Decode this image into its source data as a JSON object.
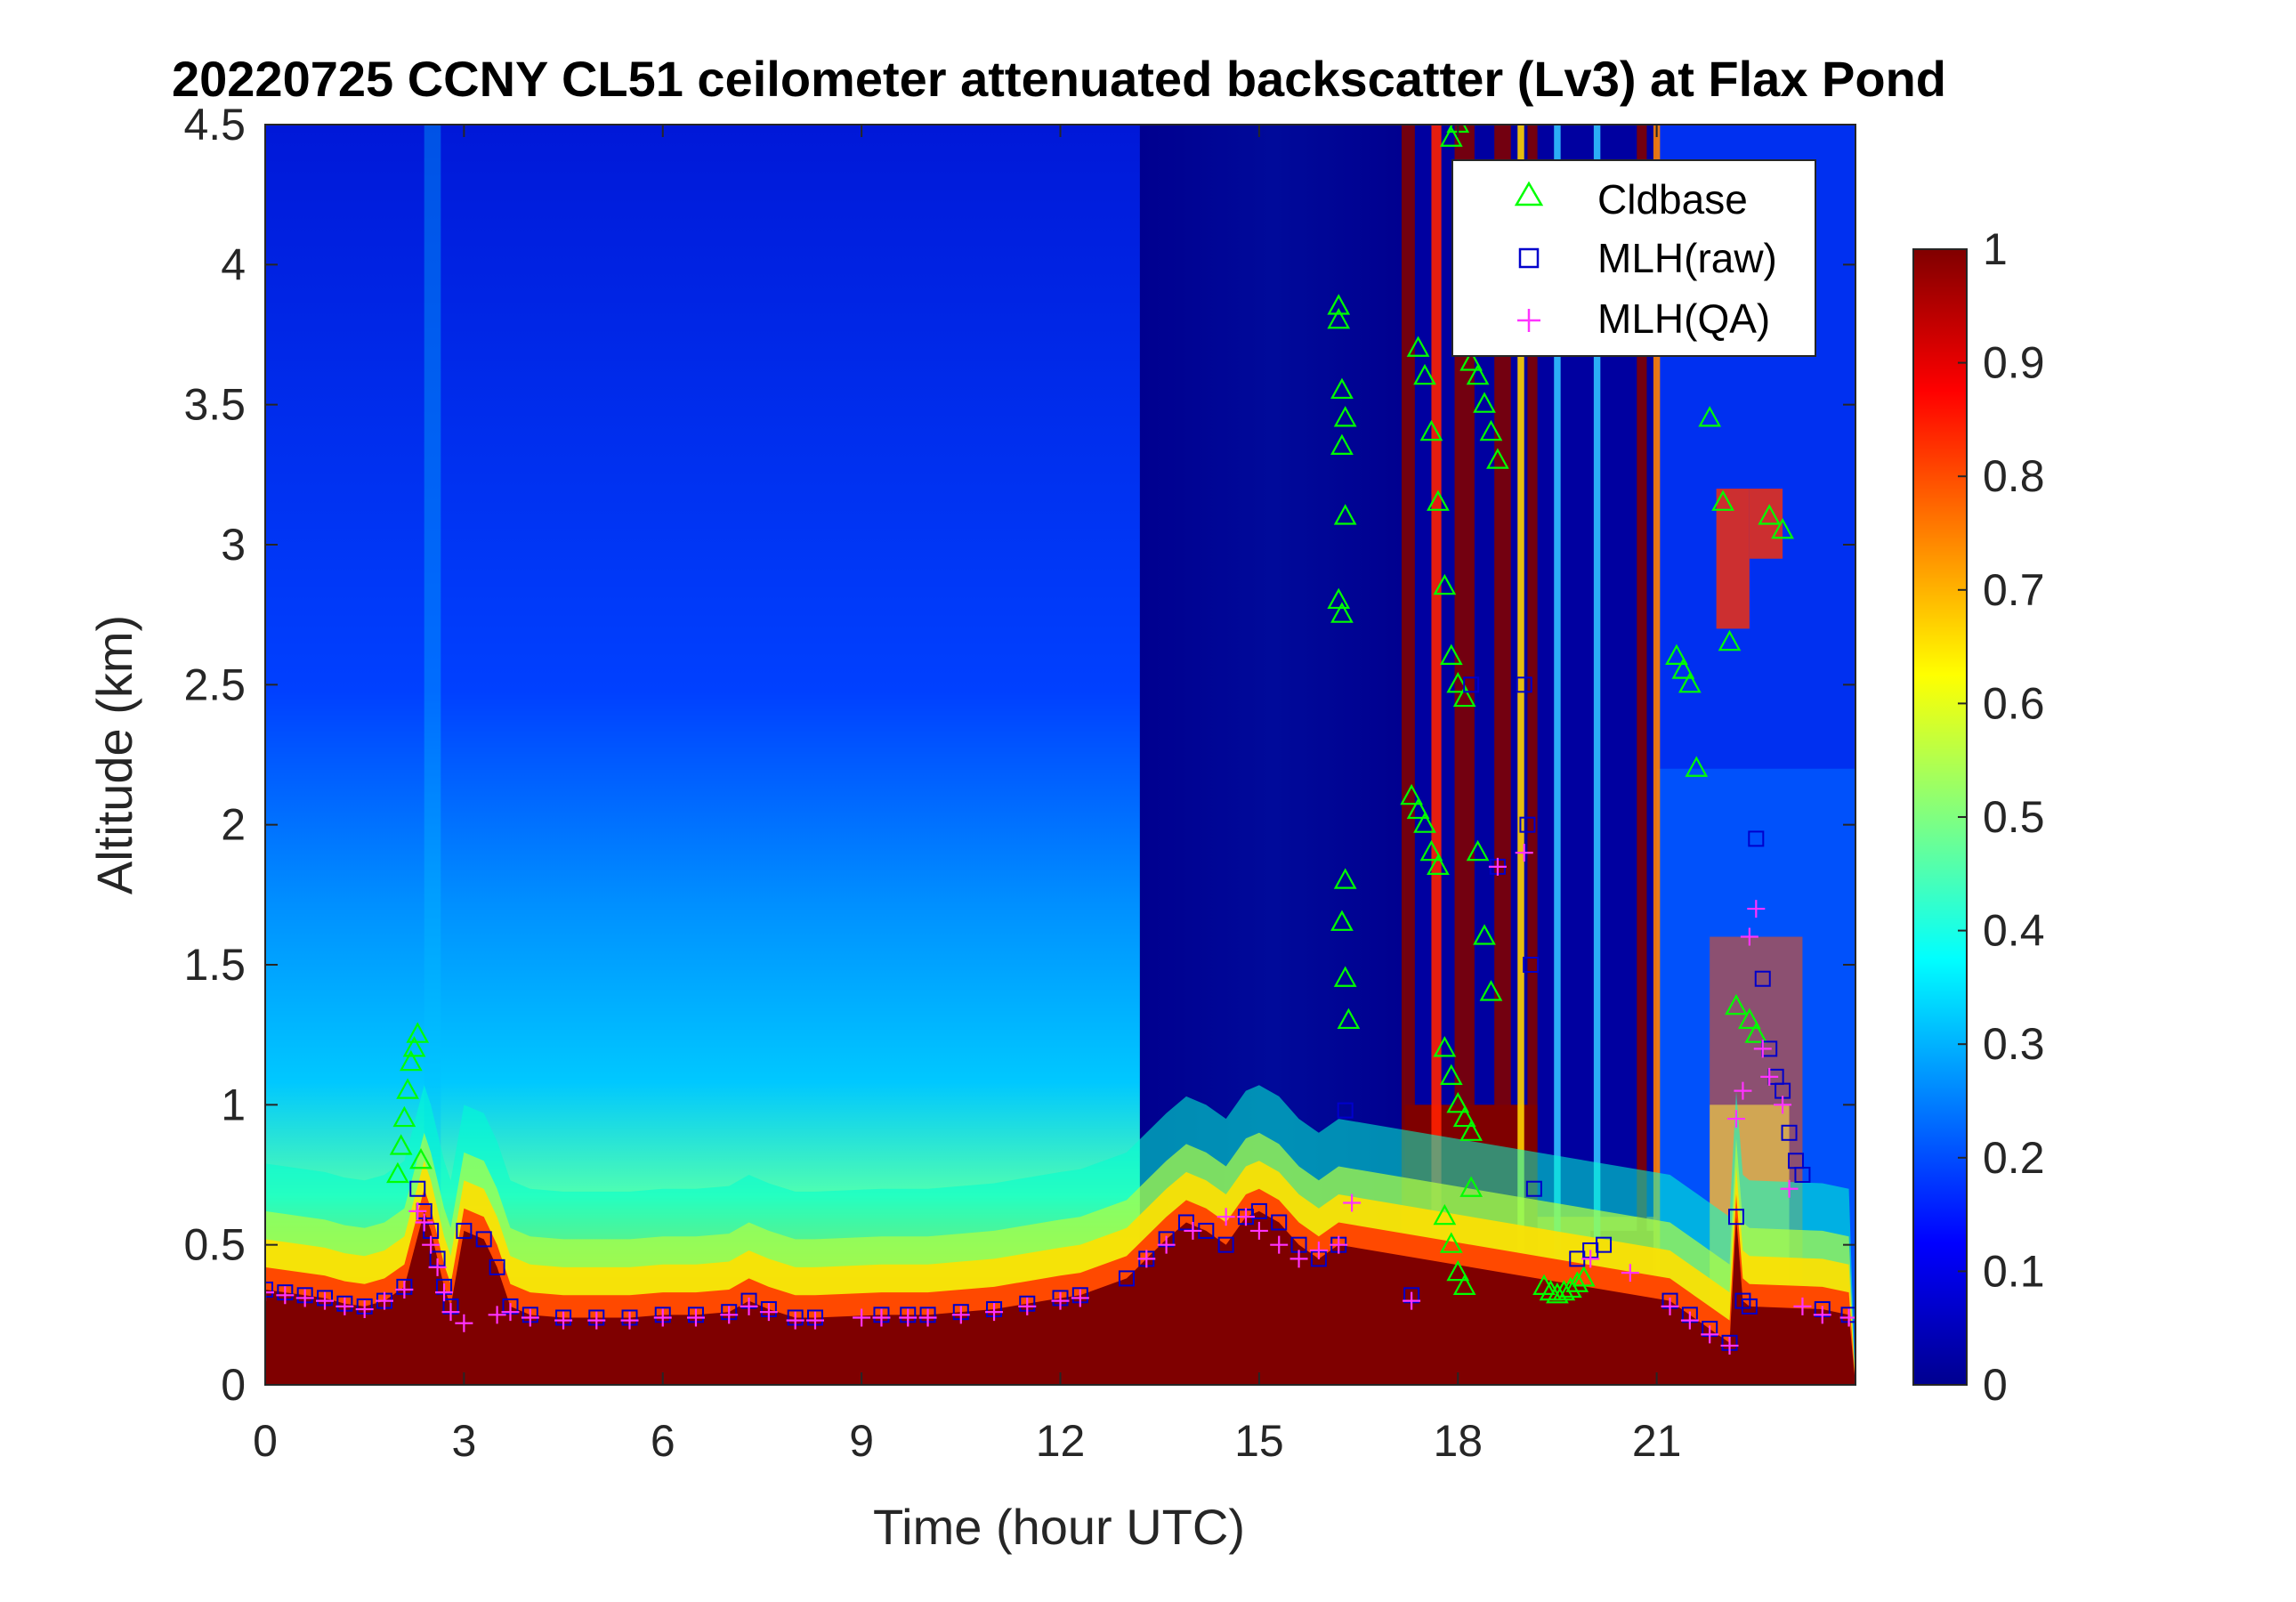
{
  "chart_data": {
    "type": "heatmap",
    "title": "20220725 CCNY CL51 ceilometer attenuated backscatter (Lv3) at Flax Pond",
    "xlabel": "Time (hour UTC)",
    "ylabel": "Altitude (km)",
    "xlim": [
      0,
      24
    ],
    "ylim": [
      0,
      4.5
    ],
    "x_ticks": [
      "0",
      "3",
      "6",
      "9",
      "12",
      "15",
      "18",
      "21"
    ],
    "x_tick_values": [
      0,
      3,
      6,
      9,
      12,
      15,
      18,
      21
    ],
    "y_ticks": [
      "0",
      "0.5",
      "1",
      "1.5",
      "2",
      "2.5",
      "3",
      "3.5",
      "4",
      "4.5"
    ],
    "y_tick_values": [
      0,
      0.5,
      1,
      1.5,
      2,
      2.5,
      3,
      3.5,
      4,
      4.5
    ],
    "colorbar": {
      "colormap": "jet",
      "range": [
        0,
        1
      ],
      "ticks": [
        "0",
        "0.1",
        "0.2",
        "0.3",
        "0.4",
        "0.5",
        "0.6",
        "0.7",
        "0.8",
        "0.9",
        "1"
      ],
      "tick_values": [
        0,
        0.1,
        0.2,
        0.3,
        0.4,
        0.5,
        0.6,
        0.7,
        0.8,
        0.9,
        1
      ]
    },
    "legend": {
      "placement": "top-right",
      "entries": [
        {
          "label": "Cldbase",
          "marker": "triangle",
          "color": "#00ff00"
        },
        {
          "label": "MLH(raw)",
          "marker": "square",
          "color": "#0000cc"
        },
        {
          "label": "MLH(QA)",
          "marker": "plus",
          "color": "#ff33ff"
        }
      ]
    },
    "series": [
      {
        "name": "Cldbase",
        "marker": "triangle",
        "color": "#00ff00",
        "x": [
          2.0,
          2.05,
          2.1,
          2.15,
          2.2,
          2.25,
          2.3,
          2.35,
          16.2,
          16.2,
          16.25,
          16.3,
          16.25,
          16.3,
          16.2,
          16.25,
          16.3,
          16.25,
          16.3,
          16.35,
          17.3,
          17.4,
          17.5,
          17.6,
          17.7,
          17.8,
          17.9,
          18.0,
          18.1,
          18.2,
          17.4,
          17.5,
          17.6,
          17.7,
          17.8,
          17.9,
          18.0,
          18.1,
          17.9,
          18.0,
          18.2,
          18.3,
          18.4,
          18.5,
          18.6,
          18.3,
          18.4,
          18.5,
          17.8,
          17.9,
          18.0,
          18.1,
          18.2,
          19.3,
          19.4,
          19.5,
          19.6,
          19.7,
          19.8,
          19.9,
          21.3,
          21.4,
          21.5,
          21.6,
          21.8,
          22.0,
          22.1,
          22.2,
          22.4,
          22.5,
          22.7,
          22.9
        ],
        "y": [
          0.75,
          0.85,
          0.95,
          1.05,
          1.15,
          1.2,
          1.25,
          0.8,
          3.85,
          3.8,
          3.55,
          3.45,
          3.35,
          3.1,
          2.8,
          2.75,
          1.8,
          1.65,
          1.45,
          1.3,
          2.1,
          2.05,
          2.0,
          1.9,
          1.85,
          1.2,
          1.1,
          1.0,
          0.95,
          0.9,
          3.7,
          3.6,
          3.4,
          3.15,
          2.85,
          2.6,
          2.5,
          2.45,
          4.45,
          4.5,
          3.65,
          3.6,
          3.5,
          3.4,
          3.3,
          1.9,
          1.6,
          1.4,
          0.6,
          0.5,
          0.4,
          0.35,
          0.7,
          0.35,
          0.33,
          0.32,
          0.33,
          0.34,
          0.36,
          0.38,
          2.6,
          2.55,
          2.5,
          2.2,
          3.45,
          3.15,
          2.65,
          1.35,
          1.3,
          1.25,
          3.1,
          3.05
        ]
      },
      {
        "name": "MLH(raw)",
        "marker": "square",
        "color": "#0000cc",
        "x": [
          0.0,
          0.3,
          0.6,
          0.9,
          1.2,
          1.5,
          1.8,
          2.1,
          2.3,
          2.4,
          2.5,
          2.6,
          2.7,
          2.8,
          3.0,
          3.3,
          3.5,
          3.7,
          4.0,
          4.5,
          5.0,
          5.5,
          6.0,
          6.5,
          7.0,
          7.3,
          7.6,
          8.0,
          8.3,
          9.3,
          9.7,
          10.0,
          10.5,
          11.0,
          11.5,
          12.0,
          12.3,
          13.0,
          13.3,
          13.6,
          13.9,
          14.2,
          14.5,
          14.8,
          15.0,
          15.3,
          15.6,
          15.9,
          16.2,
          16.3,
          17.3,
          18.2,
          18.6,
          19.0,
          19.05,
          19.1,
          19.15,
          19.8,
          20.0,
          20.2,
          21.2,
          21.5,
          21.8,
          22.1,
          22.2,
          22.3,
          22.4,
          22.5,
          22.6,
          22.7,
          22.8,
          22.9,
          23.0,
          23.1,
          23.2,
          23.5,
          23.9
        ],
        "y": [
          0.34,
          0.33,
          0.32,
          0.31,
          0.29,
          0.28,
          0.3,
          0.35,
          0.7,
          0.62,
          0.55,
          0.45,
          0.35,
          0.28,
          0.55,
          0.52,
          0.42,
          0.28,
          0.25,
          0.24,
          0.24,
          0.24,
          0.25,
          0.25,
          0.26,
          0.3,
          0.27,
          0.24,
          0.24,
          0.25,
          0.25,
          0.25,
          0.26,
          0.27,
          0.29,
          0.31,
          0.32,
          0.38,
          0.45,
          0.52,
          0.58,
          0.55,
          0.5,
          0.6,
          0.62,
          0.58,
          0.5,
          0.45,
          0.5,
          0.98,
          0.32,
          2.5,
          1.85,
          2.5,
          2.0,
          1.5,
          0.7,
          0.45,
          0.48,
          0.5,
          0.3,
          0.25,
          0.2,
          0.15,
          0.6,
          0.3,
          0.28,
          1.95,
          1.45,
          1.2,
          1.1,
          1.05,
          0.9,
          0.8,
          0.75,
          0.27,
          0.25
        ]
      },
      {
        "name": "MLH(QA)",
        "marker": "plus",
        "color": "#ff33ff",
        "x": [
          0.0,
          0.3,
          0.6,
          0.9,
          1.2,
          1.5,
          1.8,
          2.1,
          2.3,
          2.4,
          2.5,
          2.6,
          2.7,
          2.8,
          3.0,
          3.5,
          3.7,
          4.0,
          4.5,
          5.0,
          5.5,
          6.0,
          6.5,
          7.0,
          7.3,
          7.6,
          8.0,
          8.3,
          9.0,
          9.3,
          9.7,
          10.0,
          10.5,
          11.0,
          11.5,
          12.0,
          12.3,
          13.3,
          13.6,
          14.0,
          14.5,
          14.8,
          15.0,
          15.3,
          15.6,
          15.9,
          16.2,
          16.4,
          17.3,
          18.6,
          19.0,
          20.0,
          20.6,
          21.2,
          21.5,
          21.8,
          22.1,
          22.2,
          22.3,
          22.4,
          22.5,
          22.6,
          22.7,
          22.9,
          23.0,
          23.2,
          23.5,
          23.9
        ],
        "y": [
          0.33,
          0.32,
          0.31,
          0.3,
          0.28,
          0.27,
          0.3,
          0.34,
          0.62,
          0.58,
          0.5,
          0.42,
          0.33,
          0.26,
          0.22,
          0.25,
          0.26,
          0.24,
          0.23,
          0.23,
          0.23,
          0.24,
          0.24,
          0.25,
          0.28,
          0.26,
          0.23,
          0.23,
          0.24,
          0.24,
          0.24,
          0.24,
          0.25,
          0.26,
          0.28,
          0.3,
          0.31,
          0.45,
          0.5,
          0.55,
          0.6,
          0.6,
          0.55,
          0.5,
          0.45,
          0.48,
          0.5,
          0.65,
          0.3,
          1.85,
          1.9,
          0.45,
          0.4,
          0.28,
          0.23,
          0.18,
          0.14,
          0.95,
          1.05,
          1.6,
          1.7,
          1.2,
          1.1,
          1.0,
          0.7,
          0.28,
          0.25,
          0.24
        ]
      }
    ]
  }
}
